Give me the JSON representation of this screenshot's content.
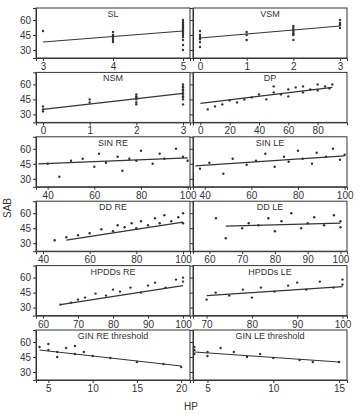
{
  "chart_data": {
    "type": "scatter",
    "xlabel": "HP",
    "ylabel": "SAB",
    "color": "#333333",
    "panels": [
      {
        "title": "SL",
        "xlim": [
          2.9,
          5.1
        ],
        "xticks": [
          3,
          4,
          5
        ],
        "ylim": [
          22,
          72
        ],
        "yticks": [
          30,
          45,
          60
        ],
        "tick_labels": true,
        "series": [
          {
            "type": "scatter",
            "marker": "circle",
            "color": "#333333",
            "x": [
              3,
              4,
              4,
              4,
              4,
              4,
              4,
              5,
              5,
              5,
              5,
              5,
              5,
              5,
              5,
              5,
              5,
              5,
              5,
              5,
              5,
              5,
              5,
              5,
              5
            ],
            "values": [
              49,
              38,
              40,
              42,
              44,
              45,
              48,
              30,
              35,
              40,
              43,
              45,
              47,
              48,
              49,
              50,
              51,
              52,
              53,
              54,
              55,
              56,
              57,
              58,
              60
            ]
          },
          {
            "type": "line",
            "line_style": "solid",
            "color": "#333333",
            "x": [
              3,
              5
            ],
            "values": [
              38,
              49
            ]
          }
        ]
      },
      {
        "title": "VSM",
        "xlim": [
          -0.15,
          3.15
        ],
        "xticks": [
          0,
          1,
          2,
          3
        ],
        "ylim": [
          22,
          72
        ],
        "yticks": [
          30,
          45,
          60
        ],
        "tick_labels": "x",
        "series": [
          {
            "type": "scatter",
            "marker": "circle",
            "color": "#333333",
            "x": [
              0,
              0,
              0,
              0,
              0,
              0,
              0,
              1,
              1,
              1,
              2,
              2,
              2,
              2,
              2,
              2,
              2,
              2,
              3,
              3,
              3,
              3,
              3
            ],
            "values": [
              33,
              38,
              41,
              42,
              43,
              45,
              49,
              40,
              45,
              48,
              40,
              45,
              46,
              47,
              49,
              50,
              52,
              54,
              52,
              55,
              56,
              57,
              60
            ]
          },
          {
            "type": "line",
            "line_style": "solid",
            "color": "#333333",
            "x": [
              0,
              3
            ],
            "values": [
              42,
              54
            ]
          }
        ]
      },
      {
        "title": "NSM",
        "xlim": [
          -0.15,
          3.15
        ],
        "xticks": [
          0,
          1,
          2,
          3
        ],
        "ylim": [
          22,
          72
        ],
        "yticks": [
          30,
          45,
          60
        ],
        "tick_labels": true,
        "series": [
          {
            "type": "scatter",
            "marker": "circle",
            "color": "#333333",
            "x": [
              0,
              0,
              0,
              1,
              1,
              2,
              2,
              2,
              2,
              2,
              2,
              3,
              3,
              3,
              3,
              3,
              3,
              3,
              3,
              3,
              3,
              3
            ],
            "values": [
              33,
              35,
              38,
              42,
              45,
              40,
              42,
              45,
              47,
              48,
              50,
              40,
              45,
              47,
              48,
              50,
              52,
              54,
              55,
              57,
              58,
              60
            ]
          },
          {
            "type": "line",
            "line_style": "solid",
            "color": "#333333",
            "x": [
              0,
              3
            ],
            "values": [
              35,
              51
            ]
          }
        ]
      },
      {
        "title": "DP",
        "xlim": [
          -5,
          100
        ],
        "xticks": [
          0,
          20,
          40,
          60,
          80
        ],
        "ylim": [
          22,
          72
        ],
        "yticks": [
          30,
          45,
          60
        ],
        "tick_labels": "x",
        "series": [
          {
            "type": "scatter",
            "marker": "circle",
            "color": "#333333",
            "x": [
              5,
              10,
              15,
              20,
              25,
              30,
              35,
              40,
              45,
              50,
              55,
              60,
              65,
              70,
              75,
              80,
              85,
              88,
              90,
              50,
              60,
              70,
              80
            ],
            "values": [
              35,
              38,
              40,
              44,
              42,
              45,
              47,
              50,
              45,
              52,
              50,
              55,
              57,
              58,
              55,
              60,
              58,
              56,
              60,
              58,
              48,
              52,
              54
            ]
          },
          {
            "type": "line",
            "line_style": "solid",
            "color": "#333333",
            "x": [
              0,
              90
            ],
            "values": [
              41,
              57
            ]
          }
        ]
      },
      {
        "title": "SIN RE",
        "xlim": [
          35,
          101
        ],
        "xticks": [
          40,
          60,
          80,
          100
        ],
        "ylim": [
          22,
          72
        ],
        "yticks": [
          30,
          45,
          60
        ],
        "tick_labels": true,
        "series": [
          {
            "type": "scatter",
            "marker": "circle",
            "color": "#333333",
            "x": [
              40,
              45,
              50,
              55,
              60,
              62,
              65,
              70,
              72,
              75,
              78,
              80,
              85,
              88,
              90,
              95,
              98,
              100
            ],
            "values": [
              45,
              32,
              48,
              50,
              42,
              55,
              46,
              52,
              38,
              50,
              48,
              58,
              45,
              55,
              50,
              60,
              52,
              48
            ]
          },
          {
            "type": "line",
            "line_style": "solid",
            "color": "#333333",
            "x": [
              36,
              100
            ],
            "values": [
              45,
              51
            ]
          }
        ]
      },
      {
        "title": "SIN LE",
        "xlim": [
          35,
          101
        ],
        "xticks": [
          40,
          60,
          80,
          100
        ],
        "ylim": [
          22,
          72
        ],
        "yticks": [
          30,
          45,
          60
        ],
        "tick_labels": "x",
        "series": [
          {
            "type": "scatter",
            "marker": "circle",
            "color": "#333333",
            "x": [
              38,
              42,
              48,
              52,
              58,
              62,
              66,
              70,
              74,
              76,
              80,
              82,
              86,
              88,
              92,
              95,
              98,
              100
            ],
            "values": [
              40,
              46,
              35,
              50,
              44,
              48,
              55,
              42,
              52,
              47,
              58,
              50,
              45,
              56,
              52,
              60,
              49,
              54
            ]
          },
          {
            "type": "line",
            "line_style": "solid",
            "color": "#333333",
            "x": [
              36,
              100
            ],
            "values": [
              43,
              53
            ]
          }
        ]
      },
      {
        "title": "DD RE",
        "xlim": [
          37,
          103
        ],
        "xticks": [
          40,
          60,
          80,
          100
        ],
        "ylim": [
          22,
          72
        ],
        "yticks": [
          30,
          45,
          60
        ],
        "tick_labels": true,
        "series": [
          {
            "type": "scatter",
            "marker": "circle",
            "color": "#333333",
            "x": [
              45,
              50,
              55,
              60,
              65,
              70,
              72,
              75,
              78,
              80,
              82,
              85,
              88,
              90,
              92,
              95,
              98,
              100,
              100
            ],
            "values": [
              33,
              36,
              38,
              40,
              44,
              42,
              48,
              46,
              50,
              45,
              52,
              48,
              55,
              50,
              58,
              52,
              56,
              60,
              50
            ]
          },
          {
            "type": "line",
            "line_style": "solid",
            "color": "#333333",
            "x": [
              50,
              100
            ],
            "values": [
              33,
              51
            ]
          }
        ]
      },
      {
        "title": "DD LE",
        "xlim": [
          55,
          102
        ],
        "xticks": [
          60,
          70,
          80,
          90,
          100
        ],
        "ylim": [
          22,
          72
        ],
        "yticks": [
          30,
          45,
          60
        ],
        "tick_labels": "x",
        "series": [
          {
            "type": "scatter",
            "marker": "circle",
            "color": "#333333",
            "x": [
              62,
              65,
              70,
              72,
              75,
              78,
              80,
              82,
              85,
              88,
              90,
              92,
              95,
              98,
              100,
              100
            ],
            "values": [
              55,
              35,
              45,
              50,
              48,
              55,
              42,
              52,
              60,
              45,
              50,
              56,
              48,
              58,
              52,
              46
            ]
          },
          {
            "type": "line",
            "line_style": "solid",
            "color": "#333333",
            "x": [
              65,
              100
            ],
            "values": [
              47,
              50
            ]
          }
        ]
      },
      {
        "title": "HPDDs RE",
        "xlim": [
          58,
          102
        ],
        "xticks": [
          60,
          70,
          80,
          90,
          100
        ],
        "ylim": [
          22,
          72
        ],
        "yticks": [
          30,
          45,
          60
        ],
        "tick_labels": true,
        "series": [
          {
            "type": "scatter",
            "marker": "circle",
            "color": "#333333",
            "x": [
              65,
              68,
              70,
              72,
              75,
              78,
              80,
              82,
              85,
              88,
              90,
              92,
              95,
              98,
              100,
              100
            ],
            "values": [
              33,
              35,
              38,
              40,
              44,
              42,
              48,
              46,
              50,
              45,
              52,
              55,
              50,
              58,
              56,
              60
            ]
          },
          {
            "type": "line",
            "line_style": "solid",
            "color": "#333333",
            "x": [
              65,
              100
            ],
            "values": [
              33,
              52
            ]
          }
        ]
      },
      {
        "title": "HPDDs LE",
        "xlim": [
          67,
          101
        ],
        "xticks": [
          70,
          80,
          90,
          100
        ],
        "ylim": [
          22,
          72
        ],
        "yticks": [
          30,
          45,
          60
        ],
        "tick_labels": "x",
        "series": [
          {
            "type": "scatter",
            "marker": "circle",
            "color": "#333333",
            "x": [
              70,
              72,
              75,
              78,
              80,
              82,
              85,
              88,
              90,
              92,
              95,
              98,
              100,
              100
            ],
            "values": [
              38,
              45,
              42,
              48,
              40,
              50,
              46,
              52,
              55,
              48,
              56,
              50,
              58,
              53
            ]
          },
          {
            "type": "line",
            "line_style": "solid",
            "color": "#333333",
            "x": [
              70,
              100
            ],
            "values": [
              42,
              51
            ]
          }
        ]
      },
      {
        "title": "GIN RE threshold",
        "xlim": [
          3.6,
          21
        ],
        "xticks": [
          5,
          10,
          15,
          20
        ],
        "ylim": [
          22,
          72
        ],
        "yticks": [
          30,
          45,
          60
        ],
        "tick_labels": true,
        "series": [
          {
            "type": "scatter",
            "marker": "circle",
            "color": "#333333",
            "x": [
              4,
              5,
              5,
              6,
              6,
              7,
              8,
              8,
              9,
              10,
              12,
              15,
              18,
              20
            ],
            "values": [
              55,
              52,
              58,
              50,
              45,
              54,
              48,
              56,
              50,
              46,
              44,
              40,
              38,
              35
            ]
          },
          {
            "type": "line",
            "line_style": "solid",
            "color": "#333333",
            "x": [
              4,
              20
            ],
            "values": [
              52,
              36
            ]
          }
        ]
      },
      {
        "title": "GIN LE threshold",
        "xlim": [
          3.9,
          15.6
        ],
        "xticks": [
          5,
          10,
          15
        ],
        "ylim": [
          22,
          72
        ],
        "yticks": [
          30,
          45,
          60
        ],
        "tick_labels": "x",
        "series": [
          {
            "type": "scatter",
            "marker": "circle",
            "color": "#333333",
            "x": [
              4,
              4,
              4,
              5,
              5,
              6,
              7,
              8,
              9,
              10,
              12,
              13,
              15
            ],
            "values": [
              52,
              55,
              48,
              50,
              46,
              54,
              50,
              45,
              48,
              44,
              42,
              40,
              40
            ]
          },
          {
            "type": "line",
            "line_style": "solid",
            "color": "#333333",
            "x": [
              4,
              15
            ],
            "values": [
              50,
              40
            ]
          }
        ]
      }
    ]
  }
}
